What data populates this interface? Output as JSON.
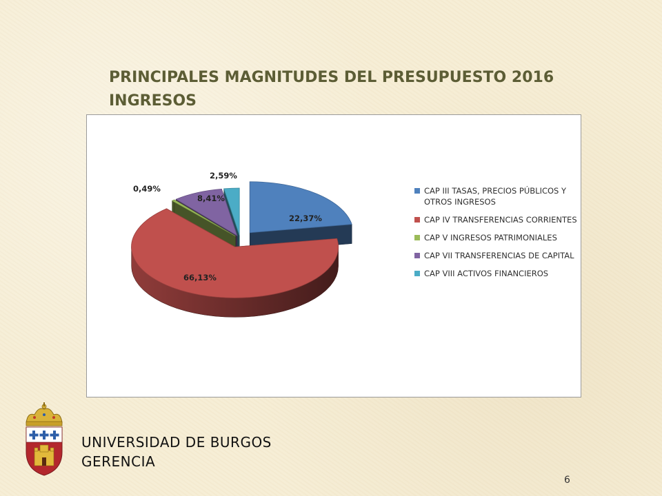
{
  "slide": {
    "title_line1": "PRINCIPALES MAGNITUDES DEL PRESUPUESTO 2016",
    "title_line2": "INGRESOS",
    "institution": "UNIVERSIDAD DE BURGOS",
    "department": "GERENCIA",
    "page_number": "6",
    "crest_icon": "university-crest-icon"
  },
  "chart_data": {
    "type": "pie",
    "title": "",
    "style": "3d-exploded",
    "legend_position": "right",
    "series": [
      {
        "name": "CAP III TASAS, PRECIOS PÚBLICOS Y OTROS INGRESOS",
        "value": 22.37,
        "label": "22,37%",
        "color": "#4f81bd"
      },
      {
        "name": "CAP IV TRANSFERENCIAS CORRIENTES",
        "value": 66.13,
        "label": "66,13%",
        "color": "#c0504d"
      },
      {
        "name": "CAP V INGRESOS PATRIMONIALES",
        "value": 0.49,
        "label": "0,49%",
        "color": "#9bbb59"
      },
      {
        "name": "CAP VII TRANSFERENCIAS DE CAPITAL",
        "value": 8.41,
        "label": "8,41%",
        "color": "#8064a2"
      },
      {
        "name": "CAP VIII ACTIVOS FINANCIEROS",
        "value": 2.59,
        "label": "2,59%",
        "color": "#4bacc6"
      }
    ]
  }
}
